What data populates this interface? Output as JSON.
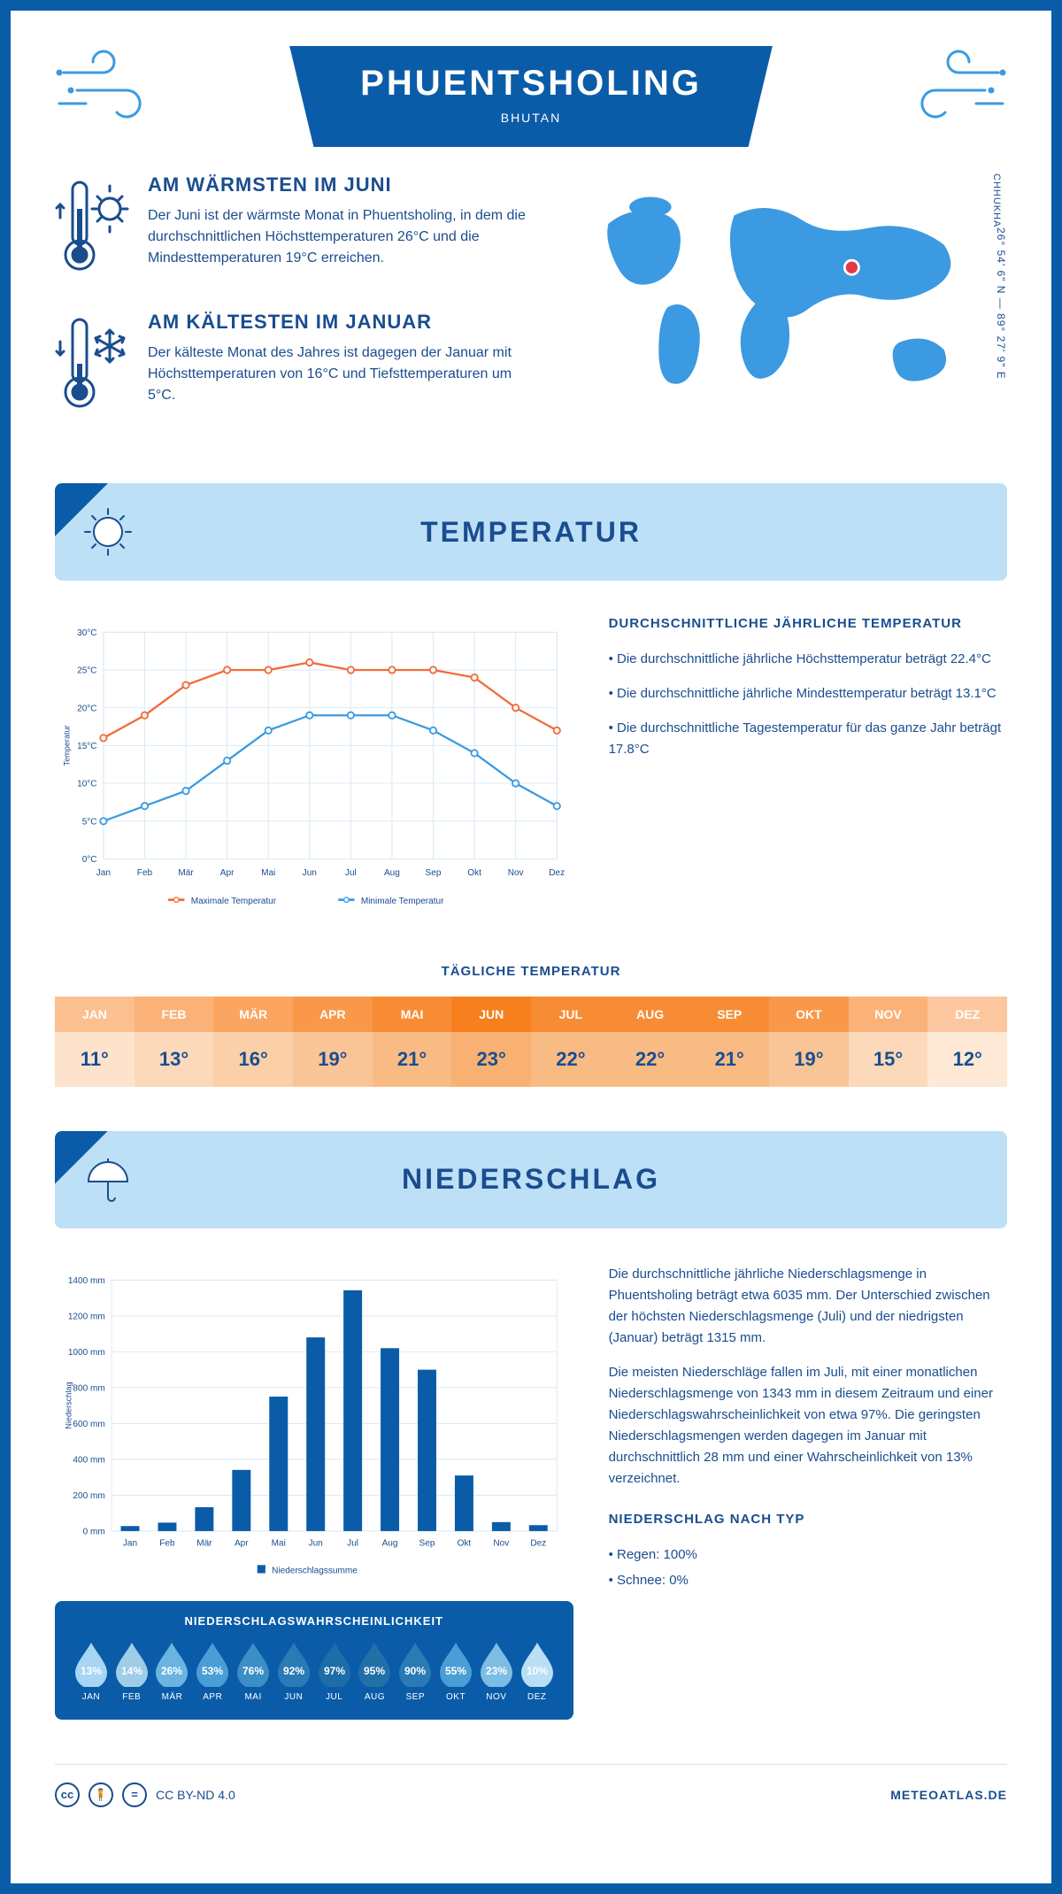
{
  "colors": {
    "primary": "#0a5ca8",
    "primary_dark": "#1a4d8f",
    "light_blue": "#bde0f7",
    "accent_blue": "#3b9ae1",
    "max_line": "#f26b3a",
    "min_line": "#3b9ae1",
    "grid": "#d6e8f5",
    "white": "#ffffff",
    "marker_red": "#e63946"
  },
  "header": {
    "city": "PHUENTSHOLING",
    "country": "BHUTAN",
    "region": "CHHUKHA",
    "coords_lat": "26° 54' 6\" N",
    "coords_lon": "89° 27' 9\" E"
  },
  "warmest": {
    "title": "AM WÄRMSTEN IM JUNI",
    "text": "Der Juni ist der wärmste Monat in Phuentsholing, in dem die durchschnittlichen Höchsttemperaturen 26°C und die Mindesttemperaturen 19°C erreichen."
  },
  "coldest": {
    "title": "AM KÄLTESTEN IM JANUAR",
    "text": "Der kälteste Monat des Jahres ist dagegen der Januar mit Höchsttemperaturen von 16°C und Tiefsttemperaturen um 5°C."
  },
  "sections": {
    "temperature": "TEMPERATUR",
    "precipitation": "NIEDERSCHLAG"
  },
  "temp_chart": {
    "type": "line",
    "months": [
      "Jan",
      "Feb",
      "Mär",
      "Apr",
      "Mai",
      "Jun",
      "Jul",
      "Aug",
      "Sep",
      "Okt",
      "Nov",
      "Dez"
    ],
    "max_values": [
      16,
      19,
      23,
      25,
      25,
      26,
      25,
      25,
      25,
      24,
      20,
      17
    ],
    "min_values": [
      5,
      7,
      9,
      13,
      17,
      19,
      19,
      19,
      17,
      14,
      10,
      7
    ],
    "max_color": "#f26b3a",
    "min_color": "#3b9ae1",
    "y_label": "Temperatur",
    "y_min": 0,
    "y_max": 30,
    "y_step": 5,
    "legend_max": "Maximale Temperatur",
    "legend_min": "Minimale Temperatur",
    "grid_color": "#d6e8f5",
    "label_fontsize": 11
  },
  "temp_text": {
    "heading": "DURCHSCHNITTLICHE JÄHRLICHE TEMPERATUR",
    "b1": "• Die durchschnittliche jährliche Höchsttemperatur beträgt 22.4°C",
    "b2": "• Die durchschnittliche jährliche Mindesttemperatur beträgt 13.1°C",
    "b3": "• Die durchschnittliche Tagestemperatur für das ganze Jahr beträgt 17.8°C"
  },
  "daily_temp": {
    "title": "TÄGLICHE TEMPERATUR",
    "months": [
      "JAN",
      "FEB",
      "MÄR",
      "APR",
      "MAI",
      "JUN",
      "JUL",
      "AUG",
      "SEP",
      "OKT",
      "NOV",
      "DEZ"
    ],
    "values": [
      "11°",
      "13°",
      "16°",
      "19°",
      "21°",
      "23°",
      "22°",
      "22°",
      "21°",
      "19°",
      "15°",
      "12°"
    ],
    "header_colors": [
      "#fcbf8f",
      "#fbb279",
      "#fba561",
      "#fa984a",
      "#f88c34",
      "#f77f1e",
      "#f88c34",
      "#f88c34",
      "#f88c34",
      "#fa984a",
      "#fbb279",
      "#fcc79f"
    ],
    "value_colors": [
      "#fde3cc",
      "#fcd9ba",
      "#fbcfa8",
      "#fac596",
      "#f9bb84",
      "#f8b172",
      "#f9bb84",
      "#f9bb84",
      "#f9bb84",
      "#fac596",
      "#fcd9ba",
      "#fde9d6"
    ]
  },
  "precip_chart": {
    "type": "bar",
    "months": [
      "Jan",
      "Feb",
      "Mär",
      "Apr",
      "Mai",
      "Jun",
      "Jul",
      "Aug",
      "Sep",
      "Okt",
      "Nov",
      "Dez"
    ],
    "values": [
      28,
      47,
      133,
      341,
      750,
      1080,
      1343,
      1020,
      900,
      310,
      50,
      33
    ],
    "bar_color": "#0a5ca8",
    "y_label": "Niederschlag",
    "y_min": 0,
    "y_max": 1400,
    "y_step": 200,
    "y_unit": " mm",
    "legend": "Niederschlagssumme",
    "grid_color": "#d6e8f5",
    "bar_width": 0.5,
    "label_fontsize": 11
  },
  "precip_text": {
    "p1": "Die durchschnittliche jährliche Niederschlagsmenge in Phuentsholing beträgt etwa 6035 mm. Der Unterschied zwischen der höchsten Niederschlagsmenge (Juli) und der niedrigsten (Januar) beträgt 1315 mm.",
    "p2": "Die meisten Niederschläge fallen im Juli, mit einer monatlichen Niederschlagsmenge von 1343 mm in diesem Zeitraum und einer Niederschlagswahrscheinlichkeit von etwa 97%. Die geringsten Niederschlagsmengen werden dagegen im Januar mit durchschnittlich 28 mm und einer Wahrscheinlichkeit von 13% verzeichnet.",
    "type_heading": "NIEDERSCHLAG NACH TYP",
    "type_rain": "• Regen: 100%",
    "type_snow": "• Schnee: 0%"
  },
  "precip_prob": {
    "title": "NIEDERSCHLAGSWAHRSCHEINLICHKEIT",
    "months": [
      "JAN",
      "FEB",
      "MÄR",
      "APR",
      "MAI",
      "JUN",
      "JUL",
      "AUG",
      "SEP",
      "OKT",
      "NOV",
      "DEZ"
    ],
    "values": [
      "13%",
      "14%",
      "26%",
      "53%",
      "76%",
      "92%",
      "97%",
      "95%",
      "90%",
      "55%",
      "23%",
      "10%"
    ],
    "drop_colors": [
      "#a8d5f2",
      "#9ecde8",
      "#6bb4e0",
      "#4a9ed6",
      "#3b8fc7",
      "#2a7bb5",
      "#1d6da8",
      "#236fa8",
      "#2a7bb5",
      "#4a9ed6",
      "#7dbde3",
      "#b8dff5"
    ]
  },
  "footer": {
    "license": "CC BY-ND 4.0",
    "site": "METEOATLAS.DE"
  }
}
